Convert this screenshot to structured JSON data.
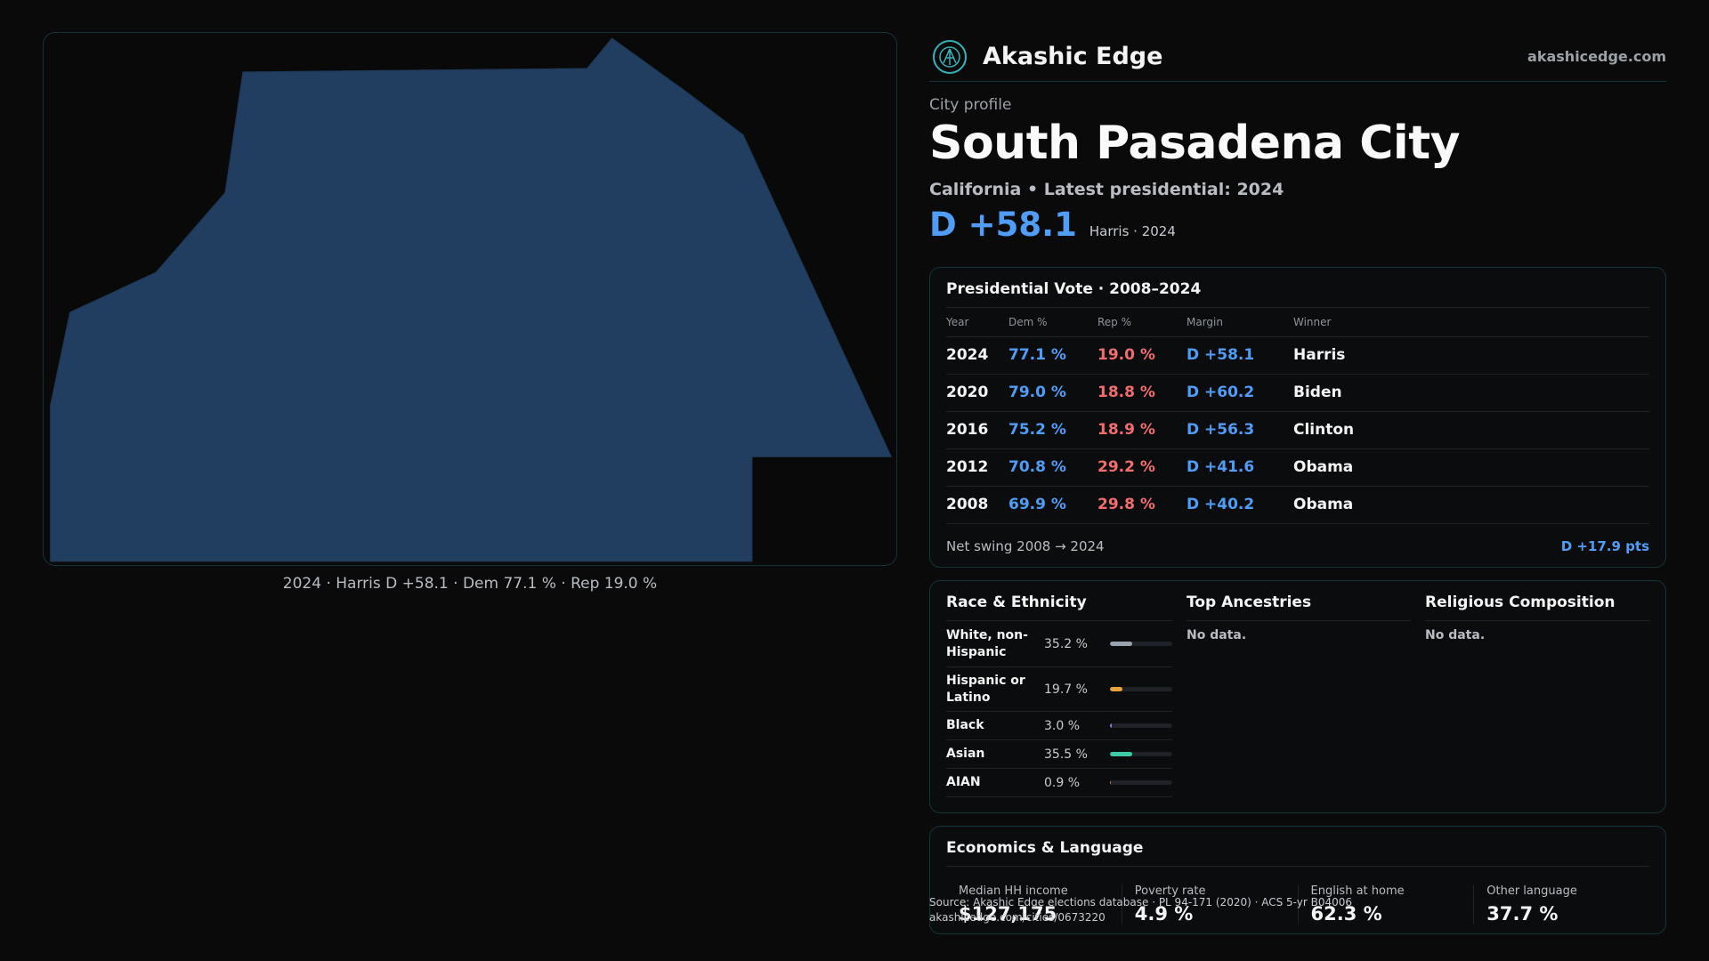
{
  "map": {
    "caption": "2024 · Harris D +58.1 · Dem 77.1 % · Rep 19.0 %",
    "fill_color": "#213d60"
  },
  "header": {
    "brand": "Akashic Edge",
    "site": "akashicedge.com"
  },
  "profile": {
    "eyebrow": "City profile",
    "title": "South Pasadena City",
    "subtitle": "California • Latest presidential: 2024",
    "margin": "D +58.1",
    "margin_note": "Harris · 2024"
  },
  "vote": {
    "title": "Presidential Vote · 2008–2024",
    "columns": [
      "Year",
      "Dem %",
      "Rep %",
      "Margin",
      "Winner"
    ],
    "rows": [
      {
        "year": "2024",
        "dem": "77.1 %",
        "rep": "19.0 %",
        "margin": "D +58.1",
        "winner": "Harris"
      },
      {
        "year": "2020",
        "dem": "79.0 %",
        "rep": "18.8 %",
        "margin": "D +60.2",
        "winner": "Biden"
      },
      {
        "year": "2016",
        "dem": "75.2 %",
        "rep": "18.9 %",
        "margin": "D +56.3",
        "winner": "Clinton"
      },
      {
        "year": "2012",
        "dem": "70.8 %",
        "rep": "29.2 %",
        "margin": "D +41.6",
        "winner": "Obama"
      },
      {
        "year": "2008",
        "dem": "69.9 %",
        "rep": "29.8 %",
        "margin": "D +40.2",
        "winner": "Obama"
      }
    ],
    "swing_label": "Net swing 2008 → 2024",
    "swing_value": "D +17.9 pts"
  },
  "race": {
    "title": "Race & Ethnicity",
    "rows": [
      {
        "name": "White, non-Hispanic",
        "pct": "35.2 %",
        "value": 35.2,
        "color": "#9aa3ad"
      },
      {
        "name": "Hispanic or Latino",
        "pct": "19.7 %",
        "value": 19.7,
        "color": "#e8a33d"
      },
      {
        "name": "Black",
        "pct": "3.0 %",
        "value": 3.0,
        "color": "#8b7cf6"
      },
      {
        "name": "Asian",
        "pct": "35.5 %",
        "value": 35.5,
        "color": "#3ec9a7"
      },
      {
        "name": "AIAN",
        "pct": "0.9 %",
        "value": 0.9,
        "color": "#c08457"
      }
    ]
  },
  "ancestries": {
    "title": "Top Ancestries",
    "empty": "No data."
  },
  "religion": {
    "title": "Religious Composition",
    "empty": "No data."
  },
  "econ": {
    "title": "Economics & Language",
    "stats": [
      {
        "label": "Median HH income",
        "value": "$127,175"
      },
      {
        "label": "Poverty rate",
        "value": "4.9 %"
      },
      {
        "label": "English at home",
        "value": "62.3 %"
      },
      {
        "label": "Other language",
        "value": "37.7 %"
      }
    ]
  },
  "footer": {
    "source": "Source: Akashic Edge elections database · PL 94-171 (2020) · ACS 5-yr B04006",
    "url": "akashicedge.com/cities/0673220"
  }
}
